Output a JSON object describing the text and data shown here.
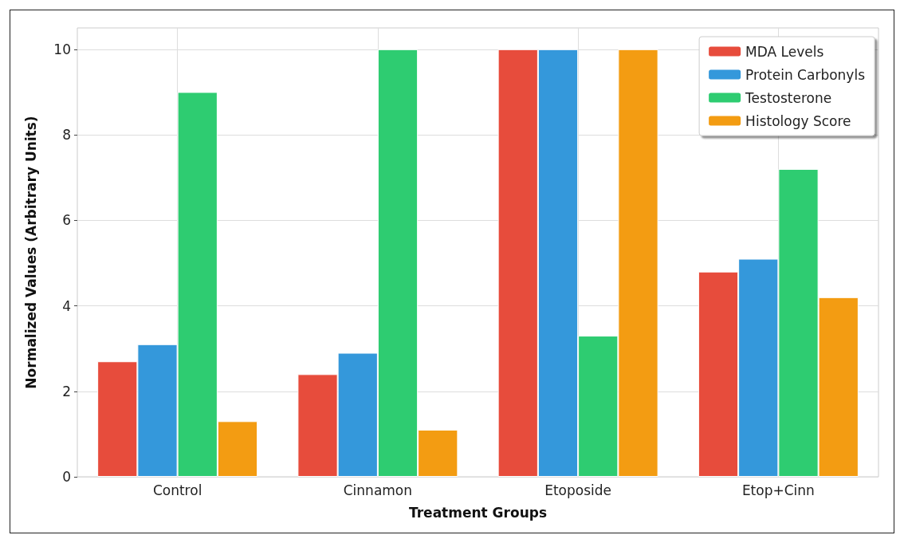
{
  "chart_data": {
    "type": "bar",
    "xlabel": "Treatment Groups",
    "ylabel": "Normalized Values (Arbitrary Units)",
    "categories": [
      "Control",
      "Cinnamon",
      "Etoposide",
      "Etop+Cinn"
    ],
    "series": [
      {
        "name": "MDA Levels",
        "color": "#e74c3c",
        "values": [
          2.7,
          2.4,
          10,
          4.8
        ]
      },
      {
        "name": "Protein Carbonyls",
        "color": "#3498db",
        "values": [
          3.1,
          2.9,
          10,
          5.1
        ]
      },
      {
        "name": "Testosterone",
        "color": "#2ecc71",
        "values": [
          9.0,
          10,
          3.3,
          7.2
        ]
      },
      {
        "name": "Histology Score",
        "color": "#f39c12",
        "values": [
          1.3,
          1.1,
          10,
          4.2
        ]
      }
    ],
    "ylim": [
      0,
      10.5
    ],
    "yticks": [
      0,
      2,
      4,
      6,
      8,
      10
    ],
    "grid": true,
    "legend": "top right"
  }
}
